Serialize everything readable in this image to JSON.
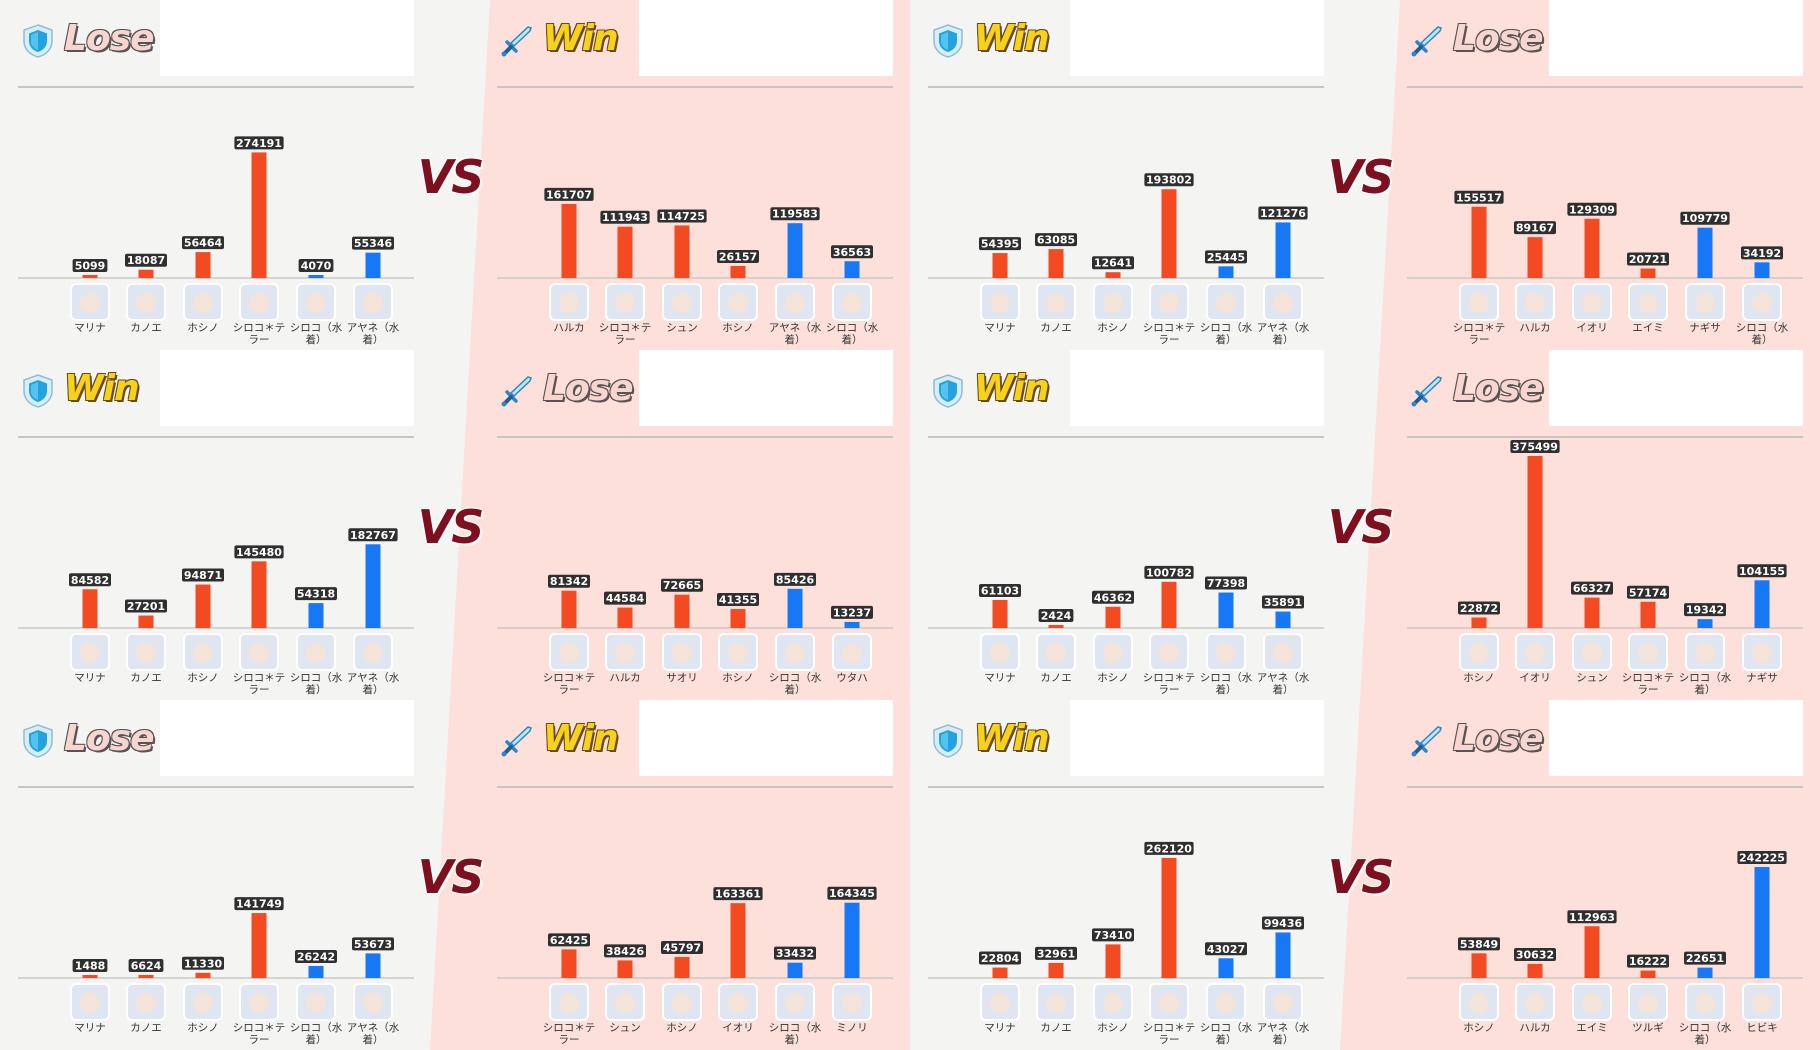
{
  "vs_label": "VS",
  "colors": {
    "striker": "#f34a22",
    "special": "#1677f7",
    "label_bg": "#2f2f2f",
    "label_text": "#ffffff"
  },
  "matches": [
    {
      "vs": "VS",
      "defense": {
        "side": "shield",
        "result": "Lose",
        "chart_data": {
          "type": "bar",
          "categories": [
            "マリナ",
            "カノエ",
            "ホシノ",
            "シロコ＊テラー",
            "シロコ（水着）",
            "アヤネ（水着）"
          ],
          "values": [
            5099,
            18087,
            56464,
            274191,
            4070,
            55346
          ],
          "kinds": [
            "striker",
            "striker",
            "striker",
            "striker",
            "special",
            "special"
          ]
        }
      },
      "attack": {
        "side": "sword",
        "result": "Win",
        "chart_data": {
          "type": "bar",
          "categories": [
            "ハルカ",
            "シロコ＊テラー",
            "シュン",
            "ホシノ",
            "アヤネ（水着）",
            "シロコ（水着）"
          ],
          "values": [
            161707,
            111943,
            114725,
            26157,
            119583,
            36563
          ],
          "kinds": [
            "striker",
            "striker",
            "striker",
            "striker",
            "special",
            "special"
          ]
        }
      }
    },
    {
      "vs": "VS",
      "defense": {
        "side": "shield",
        "result": "Win",
        "chart_data": {
          "type": "bar",
          "categories": [
            "マリナ",
            "カノエ",
            "ホシノ",
            "シロコ＊テラー",
            "シロコ（水着）",
            "アヤネ（水着）"
          ],
          "values": [
            54395,
            63085,
            12641,
            193802,
            25445,
            121276
          ],
          "kinds": [
            "striker",
            "striker",
            "striker",
            "striker",
            "special",
            "special"
          ]
        }
      },
      "attack": {
        "side": "sword",
        "result": "Lose",
        "chart_data": {
          "type": "bar",
          "categories": [
            "シロコ＊テラー",
            "ハルカ",
            "イオリ",
            "エイミ",
            "ナギサ",
            "シロコ（水着）"
          ],
          "values": [
            155517,
            89167,
            129309,
            20721,
            109779,
            34192
          ],
          "kinds": [
            "striker",
            "striker",
            "striker",
            "striker",
            "special",
            "special"
          ]
        }
      }
    },
    {
      "vs": "VS",
      "defense": {
        "side": "shield",
        "result": "Win",
        "chart_data": {
          "type": "bar",
          "categories": [
            "マリナ",
            "カノエ",
            "ホシノ",
            "シロコ＊テラー",
            "シロコ（水着）",
            "アヤネ（水着）"
          ],
          "values": [
            84582,
            27201,
            94871,
            145480,
            54318,
            182767
          ],
          "kinds": [
            "striker",
            "striker",
            "striker",
            "striker",
            "special",
            "special"
          ]
        }
      },
      "attack": {
        "side": "sword",
        "result": "Lose",
        "chart_data": {
          "type": "bar",
          "categories": [
            "シロコ＊テラー",
            "ハルカ",
            "サオリ",
            "ホシノ",
            "シロコ（水着）",
            "ウタハ"
          ],
          "values": [
            81342,
            44584,
            72665,
            41355,
            85426,
            13237
          ],
          "kinds": [
            "striker",
            "striker",
            "striker",
            "striker",
            "special",
            "special"
          ]
        }
      }
    },
    {
      "vs": "VS",
      "defense": {
        "side": "shield",
        "result": "Win",
        "chart_data": {
          "type": "bar",
          "categories": [
            "マリナ",
            "カノエ",
            "ホシノ",
            "シロコ＊テラー",
            "シロコ（水着）",
            "アヤネ（水着）"
          ],
          "values": [
            61103,
            2424,
            46362,
            100782,
            77398,
            35891
          ],
          "kinds": [
            "striker",
            "striker",
            "striker",
            "striker",
            "special",
            "special"
          ]
        }
      },
      "attack": {
        "side": "sword",
        "result": "Lose",
        "chart_data": {
          "type": "bar",
          "categories": [
            "ホシノ",
            "イオリ",
            "シュン",
            "シロコ＊テラー",
            "シロコ（水着）",
            "ナギサ"
          ],
          "values": [
            22872,
            375499,
            66327,
            57174,
            19342,
            104155
          ],
          "kinds": [
            "striker",
            "striker",
            "striker",
            "striker",
            "special",
            "special"
          ]
        }
      }
    },
    {
      "vs": "VS",
      "defense": {
        "side": "shield",
        "result": "Lose",
        "chart_data": {
          "type": "bar",
          "categories": [
            "マリナ",
            "カノエ",
            "ホシノ",
            "シロコ＊テラー",
            "シロコ（水着）",
            "アヤネ（水着）"
          ],
          "values": [
            1488,
            6624,
            11330,
            141749,
            26242,
            53673
          ],
          "kinds": [
            "striker",
            "striker",
            "striker",
            "striker",
            "special",
            "special"
          ]
        }
      },
      "attack": {
        "side": "sword",
        "result": "Win",
        "chart_data": {
          "type": "bar",
          "categories": [
            "シロコ＊テラー",
            "シュン",
            "ホシノ",
            "イオリ",
            "シロコ（水着）",
            "ミノリ"
          ],
          "values": [
            62425,
            38426,
            45797,
            163361,
            33432,
            164345
          ],
          "kinds": [
            "striker",
            "striker",
            "striker",
            "striker",
            "special",
            "special"
          ]
        }
      }
    },
    {
      "vs": "VS",
      "defense": {
        "side": "shield",
        "result": "Win",
        "chart_data": {
          "type": "bar",
          "categories": [
            "マリナ",
            "カノエ",
            "ホシノ",
            "シロコ＊テラー",
            "シロコ（水着）",
            "アヤネ（水着）"
          ],
          "values": [
            22804,
            32961,
            73410,
            262120,
            43027,
            99436
          ],
          "kinds": [
            "striker",
            "striker",
            "striker",
            "striker",
            "special",
            "special"
          ]
        }
      },
      "attack": {
        "side": "sword",
        "result": "Lose",
        "chart_data": {
          "type": "bar",
          "categories": [
            "ホシノ",
            "ハルカ",
            "エイミ",
            "ツルギ",
            "シロコ（水着）",
            "ヒビキ"
          ],
          "values": [
            53849,
            30632,
            112963,
            16222,
            22651,
            242225
          ],
          "kinds": [
            "striker",
            "striker",
            "striker",
            "striker",
            "special",
            "special"
          ]
        }
      }
    }
  ]
}
